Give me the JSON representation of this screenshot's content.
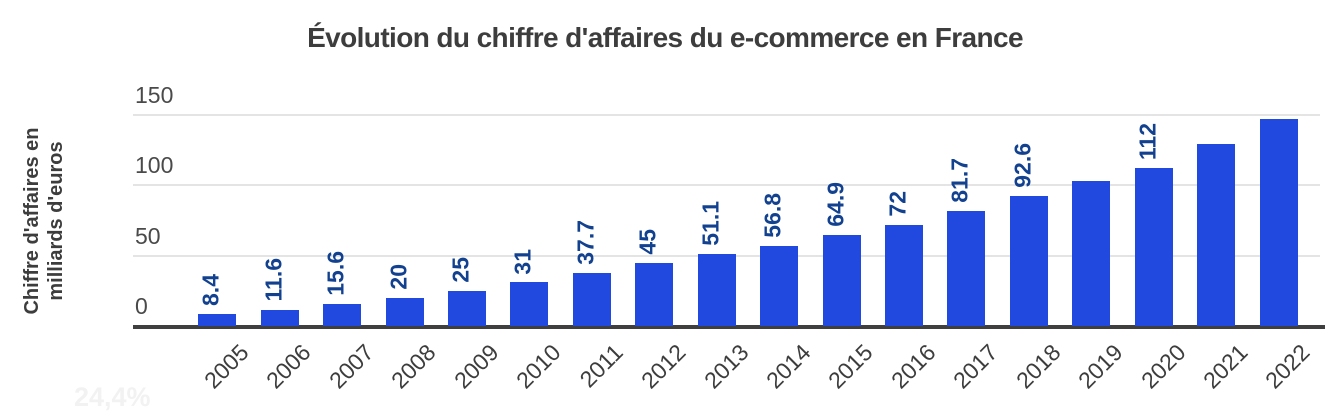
{
  "chart_data": {
    "type": "bar",
    "title": "Évolution du chiffre d'affaires du e-commerce en France",
    "ylabel_lines": [
      "Chiffre d'affaires en",
      "milliards d'euros"
    ],
    "xlabel": "",
    "categories": [
      "2005",
      "2006",
      "2007",
      "2008",
      "2009",
      "2010",
      "2011",
      "2012",
      "2013",
      "2014",
      "2015",
      "2016",
      "2017",
      "2018",
      "2019",
      "2020",
      "2021",
      "2022"
    ],
    "values": [
      8.4,
      11.6,
      15.6,
      20,
      25,
      31,
      37.7,
      45,
      51.1,
      56.8,
      64.9,
      72,
      81.7,
      92.6,
      103.4,
      112,
      129.1,
      146.9
    ],
    "bar_labels": [
      "8.4",
      "11.6",
      "15.6",
      "20",
      "25",
      "31",
      "37.7",
      "45",
      "51.1",
      "56.8",
      "64.9",
      "72",
      "81.7",
      "92.6",
      "",
      "112",
      "",
      ""
    ],
    "yticks": [
      0,
      50,
      100,
      150
    ],
    "ylim": [
      0,
      150
    ],
    "grid": true,
    "legend_position": "none",
    "bar_label_rotation_deg": -90,
    "x_tick_rotation_deg": -45,
    "colors": {
      "bar_fill": "#2149e0",
      "bar_label_text": "#12418f",
      "title_text": "#3d3d3d",
      "axis_text": "#4a4a4a",
      "x_tick_text": "#3d3d3d",
      "gridline": "#e4e4e4",
      "baseline": "#3f3f3f",
      "faint_text": "#f2f2f2"
    },
    "faint_footnote": "24,4%"
  }
}
